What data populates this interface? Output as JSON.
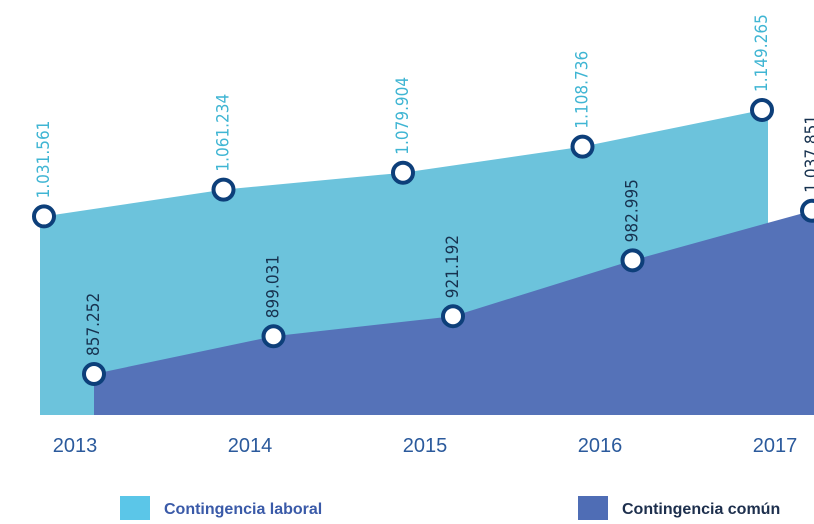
{
  "chart_data": {
    "type": "area",
    "categories": [
      "2013",
      "2014",
      "2015",
      "2016",
      "2017"
    ],
    "series": [
      {
        "name": "Contingencia laboral",
        "color": "#6cc3dc",
        "label_color": "#3fb5d3",
        "legend_color": "#5bc6e8",
        "values": [
          1031561,
          1061234,
          1079904,
          1108736,
          1149265
        ],
        "value_labels": [
          "1.031.561",
          "1.061.234",
          "1.079.904",
          "1.108.736",
          "1.149.265"
        ]
      },
      {
        "name": "Contingencia común",
        "color": "#5572b8",
        "label_color": "#17324f",
        "legend_color": "#4f6db5",
        "values": [
          857252,
          899031,
          921192,
          982995,
          1037851
        ],
        "value_labels": [
          "857.252",
          "899.031",
          "921.192",
          "982.995",
          "1.037.851"
        ]
      }
    ]
  }
}
